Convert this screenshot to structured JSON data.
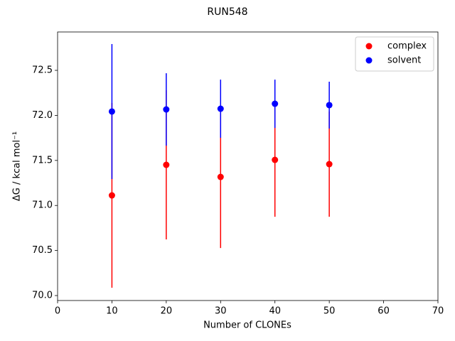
{
  "chart_data": {
    "type": "errorbar-scatter",
    "title": "RUN548",
    "xlabel": "Number of CLONEs",
    "ylabel": "ΔG / kcal mol⁻¹",
    "xlim": [
      0,
      70
    ],
    "ylim": [
      69.945,
      72.926
    ],
    "xticks": [
      0,
      10,
      20,
      30,
      40,
      50,
      60,
      70
    ],
    "yticks": [
      {
        "value": 70,
        "label": "70.0"
      },
      70.5,
      {
        "value": 71,
        "label": "71.0"
      },
      71.5,
      {
        "value": 72,
        "label": "72.0"
      },
      72.5
    ],
    "legend": "upper right",
    "grid": false,
    "series": [
      {
        "name": "complex",
        "color": "#ff0000",
        "x": [
          10,
          20,
          30,
          40,
          50
        ],
        "values": [
          71.112,
          71.451,
          71.317,
          71.506,
          71.459
        ],
        "errors": [
          1.025,
          0.828,
          0.789,
          0.631,
          0.584
        ]
      },
      {
        "name": "solvent",
        "color": "#0000ff",
        "x": [
          10,
          20,
          30,
          40,
          50
        ],
        "values": [
          72.043,
          72.066,
          72.074,
          72.129,
          72.114
        ],
        "errors": [
          0.749,
          0.402,
          0.323,
          0.268,
          0.26
        ]
      }
    ]
  }
}
